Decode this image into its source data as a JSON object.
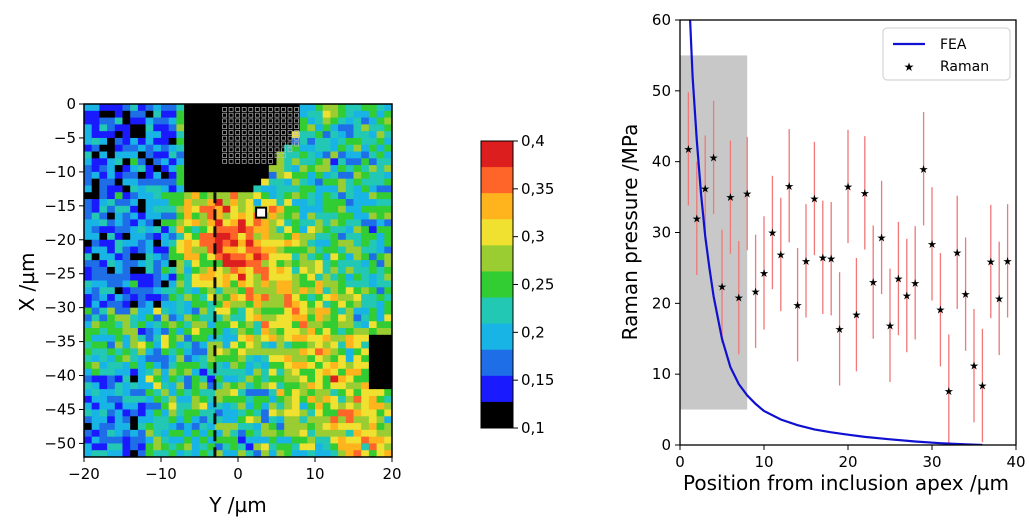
{
  "chart_data": [
    {
      "type": "heatmap",
      "xlabel": "Y /µm",
      "ylabel": "X /µm",
      "xlim": [
        -20,
        20
      ],
      "ylim": [
        -52,
        0
      ],
      "xticks": [
        "−20",
        "−10",
        "0",
        "10",
        "20"
      ],
      "yticks": [
        "0",
        "−5",
        "−10",
        "−15",
        "−20",
        "−25",
        "−30",
        "−35",
        "−40",
        "−45",
        "−50"
      ],
      "colorbar": {
        "range": [
          0.1,
          0.4
        ],
        "ticks": [
          "0,4",
          "0,35",
          "0,3",
          "0,25",
          "0,2",
          "0,15",
          "0,1"
        ],
        "colors": [
          "#000000",
          "#1a1aff",
          "#1e6ee8",
          "#19b4e6",
          "#22c8b4",
          "#32cd32",
          "#9acd32",
          "#f0e130",
          "#ffb41e",
          "#ff6428",
          "#dc1e1e"
        ]
      },
      "dashed_line_y": -3,
      "dashed_line_x_range": [
        -13,
        -52
      ],
      "notes": {
        "dark_region": "inclusion (black) at top centre from about Y=-7 to Y=8, X=0 to -13",
        "grid_marker_square": [
          3,
          -16
        ]
      }
    },
    {
      "type": "scatter",
      "xlabel": "Position from inclusion apex /µm",
      "ylabel": "Raman pressure /MPa",
      "xlim": [
        0,
        40
      ],
      "ylim": [
        0,
        60
      ],
      "xticks": [
        "0",
        "10",
        "20",
        "30",
        "40"
      ],
      "yticks": [
        "0",
        "10",
        "20",
        "30",
        "40",
        "50",
        "60"
      ],
      "grid": false,
      "legend": {
        "placement": "top-right",
        "entries": [
          "FEA",
          "Raman"
        ]
      },
      "shaded_region": {
        "x": [
          0,
          8
        ],
        "y": [
          5,
          55
        ],
        "color": "#c8c8c8"
      },
      "series": [
        {
          "name": "FEA",
          "kind": "line",
          "color": "#1010d0",
          "x": [
            1.2,
            1.5,
            2,
            2.5,
            3,
            3.5,
            4,
            5,
            6,
            7,
            8,
            9,
            10,
            12,
            14,
            16,
            18,
            20,
            22,
            25,
            28,
            31,
            34,
            36
          ],
          "y": [
            60,
            52,
            43,
            35.5,
            29.5,
            25,
            21,
            15,
            11,
            8.6,
            7,
            5.8,
            4.8,
            3.6,
            2.8,
            2.2,
            1.8,
            1.45,
            1.15,
            0.8,
            0.5,
            0.25,
            0.08,
            0
          ]
        },
        {
          "name": "Raman",
          "kind": "scatter_errorbar",
          "color": "#e02020",
          "errcolor": "#f07878",
          "x": [
            1,
            2,
            3,
            4,
            5,
            6,
            7,
            8,
            9,
            10,
            11,
            12,
            13,
            14,
            15,
            16,
            17,
            18,
            19,
            20,
            21,
            22,
            23,
            24,
            25,
            26,
            27,
            28,
            29,
            30,
            31,
            32,
            33,
            34,
            35,
            36,
            37,
            38,
            39
          ],
          "y": [
            41.8,
            32,
            36.2,
            40.6,
            22.4,
            35,
            20.8,
            35.5,
            21.7,
            24.3,
            30,
            26.9,
            36.6,
            19.8,
            26,
            34.8,
            26.5,
            26.3,
            16.4,
            36.5,
            18.4,
            35.6,
            23,
            29.3,
            16.9,
            23.5,
            21.1,
            22.9,
            39,
            28.4,
            19.1,
            7.6,
            27.2,
            21.3,
            11.2,
            8.4,
            25.9,
            20.7,
            26
          ],
          "yerr": [
            8,
            8,
            7.5,
            8,
            8,
            8,
            8,
            8,
            8,
            8,
            8,
            8,
            8,
            8,
            8,
            8,
            8,
            8,
            8,
            8,
            8,
            8,
            8,
            8,
            8,
            8,
            8,
            8,
            8,
            8,
            8,
            8,
            8,
            8,
            8,
            8,
            8,
            8,
            8
          ]
        }
      ]
    }
  ]
}
